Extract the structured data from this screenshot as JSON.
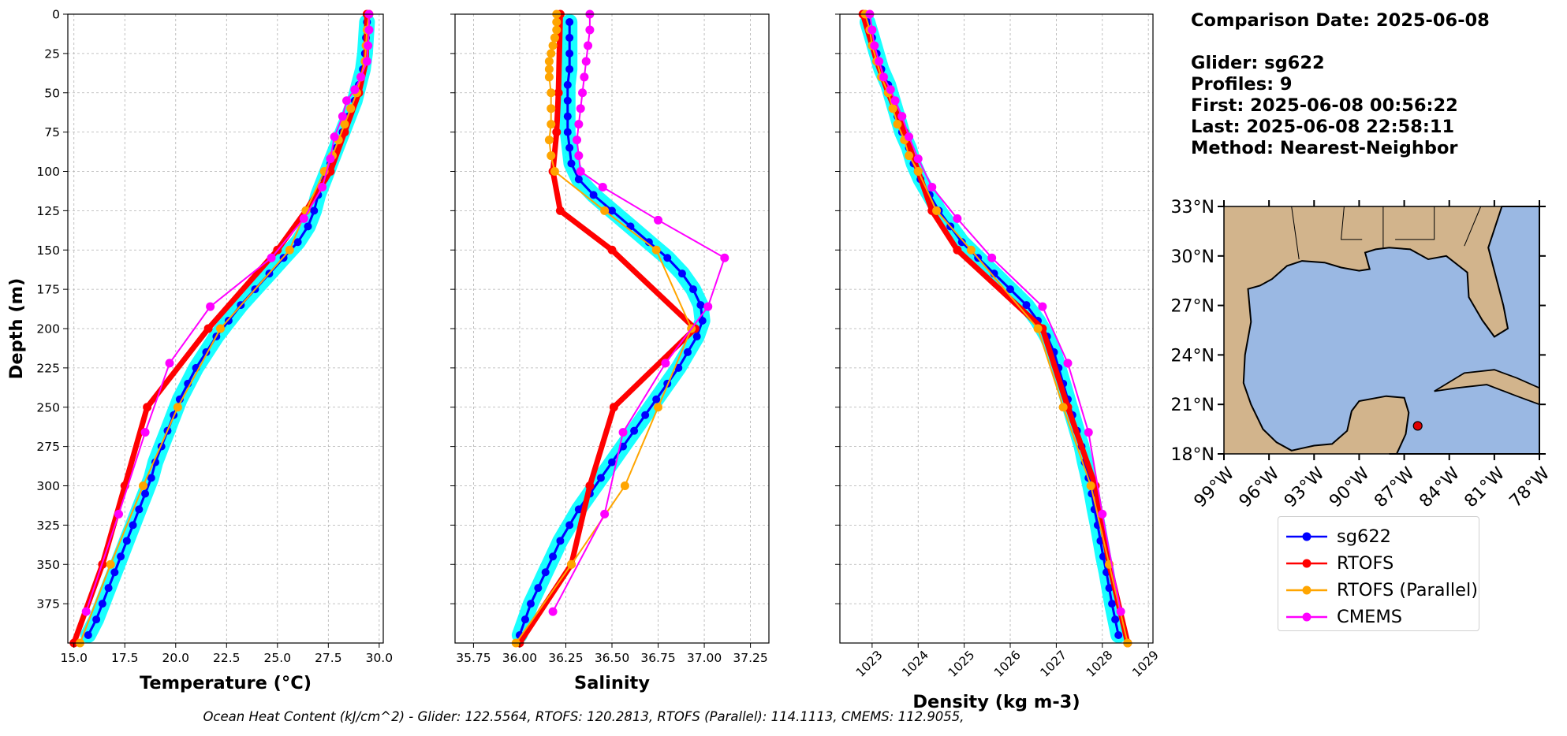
{
  "info": {
    "comparison_date": "Comparison Date: 2025-06-08",
    "glider": "Glider: sg622",
    "profiles": "Profiles: 9",
    "first": "First: 2025-06-08 00:56:22",
    "last": "Last: 2025-06-08 22:58:11",
    "method": "Method: Nearest-Neighbor"
  },
  "footer": "Ocean Heat Content (kJ/cm^2) - Glider: 122.5564,  RTOFS: 120.2813,  RTOFS (Parallel): 114.1113,  CMEMS: 112.9055,",
  "colors": {
    "sg622": "#0000ff",
    "sg622_band": "#00ffff",
    "rtofs": "#ff0000",
    "rtofs_parallel": "#ffa500",
    "cmems": "#ff00ff",
    "grid": "#b0b0b0",
    "land": "#d2b48c",
    "water": "#9ab8e3"
  },
  "legend": [
    {
      "label": "sg622",
      "color": "#0000ff"
    },
    {
      "label": "RTOFS",
      "color": "#ff0000"
    },
    {
      "label": "RTOFS (Parallel)",
      "color": "#ffa500"
    },
    {
      "label": "CMEMS",
      "color": "#ff00ff"
    }
  ],
  "chart_data": [
    {
      "type": "line",
      "xlabel": "Temperature (°C)",
      "ylabel": "Depth (m)",
      "xlim": [
        14.7,
        30.2
      ],
      "ylim": [
        400,
        0
      ],
      "y_inverted": true,
      "grid": true,
      "xticks": [
        "15.0",
        "17.5",
        "20.0",
        "22.5",
        "25.0",
        "27.5",
        "30.0"
      ],
      "yticks": [
        "0",
        "25",
        "50",
        "75",
        "100",
        "125",
        "150",
        "175",
        "200",
        "225",
        "250",
        "275",
        "300",
        "325",
        "350",
        "375"
      ],
      "series": [
        {
          "name": "sg622",
          "band": true,
          "y": [
            5,
            15,
            25,
            35,
            45,
            55,
            65,
            75,
            85,
            95,
            105,
            115,
            125,
            135,
            145,
            155,
            165,
            175,
            185,
            195,
            205,
            215,
            225,
            235,
            245,
            255,
            265,
            275,
            285,
            295,
            305,
            315,
            325,
            335,
            345,
            355,
            365,
            375,
            385,
            395
          ],
          "x": [
            29.4,
            29.35,
            29.3,
            29.2,
            29.0,
            28.8,
            28.5,
            28.2,
            27.9,
            27.6,
            27.3,
            27.0,
            26.8,
            26.5,
            26.0,
            25.3,
            24.6,
            23.9,
            23.2,
            22.6,
            22.0,
            21.5,
            21.0,
            20.6,
            20.2,
            19.9,
            19.6,
            19.3,
            19.0,
            18.8,
            18.5,
            18.2,
            17.9,
            17.6,
            17.3,
            17.0,
            16.7,
            16.4,
            16.1,
            15.7
          ]
        },
        {
          "name": "RTOFS",
          "y": [
            0,
            30,
            50,
            75,
            100,
            125,
            150,
            200,
            250,
            300,
            350,
            400
          ],
          "x": [
            29.4,
            29.35,
            29.0,
            28.3,
            27.6,
            26.4,
            25.0,
            21.6,
            18.6,
            17.5,
            16.4,
            15.0
          ]
        },
        {
          "name": "RTOFS (Parallel)",
          "y": [
            0,
            10,
            20,
            30,
            40,
            50,
            60,
            70,
            80,
            90,
            100,
            125,
            150,
            200,
            250,
            300,
            350,
            400
          ],
          "x": [
            29.5,
            29.4,
            29.35,
            29.3,
            29.1,
            28.9,
            28.6,
            28.3,
            28.0,
            27.7,
            27.3,
            26.4,
            25.6,
            22.2,
            20.1,
            18.4,
            16.8,
            15.3
          ]
        },
        {
          "name": "CMEMS",
          "y": [
            0,
            10,
            20,
            30,
            40,
            48,
            55,
            65,
            78,
            92,
            110,
            130,
            155,
            186,
            222,
            266,
            318,
            380
          ],
          "x": [
            29.5,
            29.5,
            29.45,
            29.4,
            29.1,
            28.8,
            28.4,
            28.2,
            27.8,
            27.6,
            27.2,
            26.3,
            24.7,
            21.7,
            19.7,
            18.5,
            17.2,
            15.6
          ]
        }
      ]
    },
    {
      "type": "line",
      "xlabel": "Salinity",
      "xlim": [
        35.65,
        37.35
      ],
      "ylim": [
        400,
        0
      ],
      "y_inverted": true,
      "grid": true,
      "xticks": [
        "35.75",
        "36.00",
        "36.25",
        "36.50",
        "36.75",
        "37.00",
        "37.25"
      ],
      "series": [
        {
          "name": "sg622",
          "band": true,
          "y": [
            5,
            15,
            25,
            35,
            45,
            55,
            65,
            75,
            85,
            95,
            105,
            115,
            125,
            135,
            145,
            155,
            165,
            175,
            185,
            195,
            205,
            215,
            225,
            235,
            245,
            255,
            265,
            275,
            285,
            295,
            305,
            315,
            325,
            335,
            345,
            355,
            365,
            375,
            385,
            395
          ],
          "x": [
            36.27,
            36.27,
            36.27,
            36.27,
            36.26,
            36.26,
            36.26,
            36.26,
            36.27,
            36.28,
            36.32,
            36.4,
            36.5,
            36.6,
            36.7,
            36.8,
            36.88,
            36.94,
            36.98,
            36.99,
            36.96,
            36.91,
            36.86,
            36.8,
            36.74,
            36.68,
            36.62,
            36.56,
            36.5,
            36.44,
            36.38,
            36.32,
            36.27,
            36.22,
            36.18,
            36.14,
            36.1,
            36.06,
            36.03,
            36.0
          ]
        },
        {
          "name": "RTOFS",
          "y": [
            0,
            50,
            75,
            100,
            125,
            150,
            200,
            250,
            300,
            350,
            400
          ],
          "x": [
            36.22,
            36.21,
            36.2,
            36.18,
            36.22,
            36.5,
            36.95,
            36.51,
            36.38,
            36.28,
            36.0
          ]
        },
        {
          "name": "RTOFS (Parallel)",
          "y": [
            0,
            5,
            10,
            15,
            20,
            25,
            30,
            35,
            40,
            50,
            60,
            70,
            80,
            90,
            100,
            125,
            150,
            200,
            250,
            300,
            350,
            400
          ],
          "x": [
            36.2,
            36.2,
            36.2,
            36.19,
            36.18,
            36.17,
            36.16,
            36.16,
            36.16,
            36.17,
            36.17,
            36.17,
            36.16,
            36.17,
            36.19,
            36.46,
            36.74,
            36.93,
            36.75,
            36.57,
            36.28,
            35.98
          ]
        },
        {
          "name": "CMEMS",
          "y": [
            0,
            10,
            20,
            30,
            40,
            50,
            60,
            70,
            80,
            90,
            100,
            110,
            131,
            155,
            186,
            222,
            266,
            318,
            380
          ],
          "x": [
            36.38,
            36.38,
            36.37,
            36.36,
            36.35,
            36.34,
            36.33,
            36.32,
            36.31,
            36.32,
            36.33,
            36.45,
            36.75,
            37.11,
            37.02,
            36.79,
            36.56,
            36.46,
            36.18
          ]
        }
      ]
    },
    {
      "type": "line",
      "xlabel": "Density (kg m-3)",
      "xlim": [
        1022.3,
        1029.1
      ],
      "ylim": [
        400,
        0
      ],
      "y_inverted": true,
      "grid": true,
      "xticks": [
        "1023",
        "1024",
        "1025",
        "1026",
        "1027",
        "1028",
        "1029"
      ],
      "series": [
        {
          "name": "sg622",
          "band": true,
          "y": [
            5,
            15,
            25,
            35,
            45,
            55,
            65,
            75,
            85,
            95,
            105,
            115,
            125,
            135,
            145,
            155,
            165,
            175,
            185,
            195,
            205,
            215,
            225,
            235,
            245,
            255,
            265,
            275,
            285,
            295,
            305,
            315,
            325,
            335,
            345,
            355,
            365,
            375,
            385,
            395
          ],
          "x": [
            1022.9,
            1023.0,
            1023.1,
            1023.2,
            1023.35,
            1023.45,
            1023.55,
            1023.65,
            1023.8,
            1023.9,
            1024.05,
            1024.25,
            1024.45,
            1024.7,
            1024.95,
            1025.3,
            1025.65,
            1026.0,
            1026.35,
            1026.6,
            1026.8,
            1026.95,
            1027.05,
            1027.15,
            1027.25,
            1027.35,
            1027.45,
            1027.55,
            1027.62,
            1027.7,
            1027.77,
            1027.83,
            1027.9,
            1027.96,
            1028.02,
            1028.09,
            1028.15,
            1028.21,
            1028.28,
            1028.35
          ]
        },
        {
          "name": "RTOFS",
          "y": [
            0,
            30,
            50,
            75,
            100,
            125,
            150,
            200,
            250,
            300,
            350,
            400
          ],
          "x": [
            1022.8,
            1023.1,
            1023.35,
            1023.7,
            1024.0,
            1024.3,
            1024.85,
            1026.7,
            1027.25,
            1027.85,
            1028.15,
            1028.55
          ]
        },
        {
          "name": "RTOFS (Parallel)",
          "y": [
            0,
            10,
            20,
            30,
            40,
            50,
            60,
            70,
            80,
            90,
            100,
            125,
            150,
            200,
            250,
            300,
            350,
            400
          ],
          "x": [
            1022.85,
            1022.95,
            1023.0,
            1023.1,
            1023.2,
            1023.35,
            1023.45,
            1023.55,
            1023.7,
            1023.8,
            1024.0,
            1024.4,
            1025.15,
            1026.6,
            1027.15,
            1027.75,
            1028.15,
            1028.55
          ]
        },
        {
          "name": "CMEMS",
          "y": [
            0,
            10,
            20,
            30,
            40,
            48,
            55,
            65,
            78,
            92,
            110,
            130,
            155,
            186,
            222,
            266,
            318,
            380
          ],
          "x": [
            1022.95,
            1023.0,
            1023.05,
            1023.15,
            1023.25,
            1023.4,
            1023.5,
            1023.65,
            1023.8,
            1024.0,
            1024.3,
            1024.85,
            1025.6,
            1026.7,
            1027.25,
            1027.7,
            1028.0,
            1028.4
          ]
        }
      ]
    }
  ],
  "map": {
    "lat_ticks": [
      "18°N",
      "21°N",
      "24°N",
      "27°N",
      "30°N",
      "33°N"
    ],
    "lon_ticks": [
      "99°W",
      "96°W",
      "93°W",
      "90°W",
      "87°W",
      "84°W",
      "81°W",
      "78°W"
    ],
    "lat_range": [
      18,
      33
    ],
    "lon_range": [
      -99,
      -78
    ],
    "glider_location": {
      "lon": -86.1,
      "lat": 19.7
    }
  }
}
